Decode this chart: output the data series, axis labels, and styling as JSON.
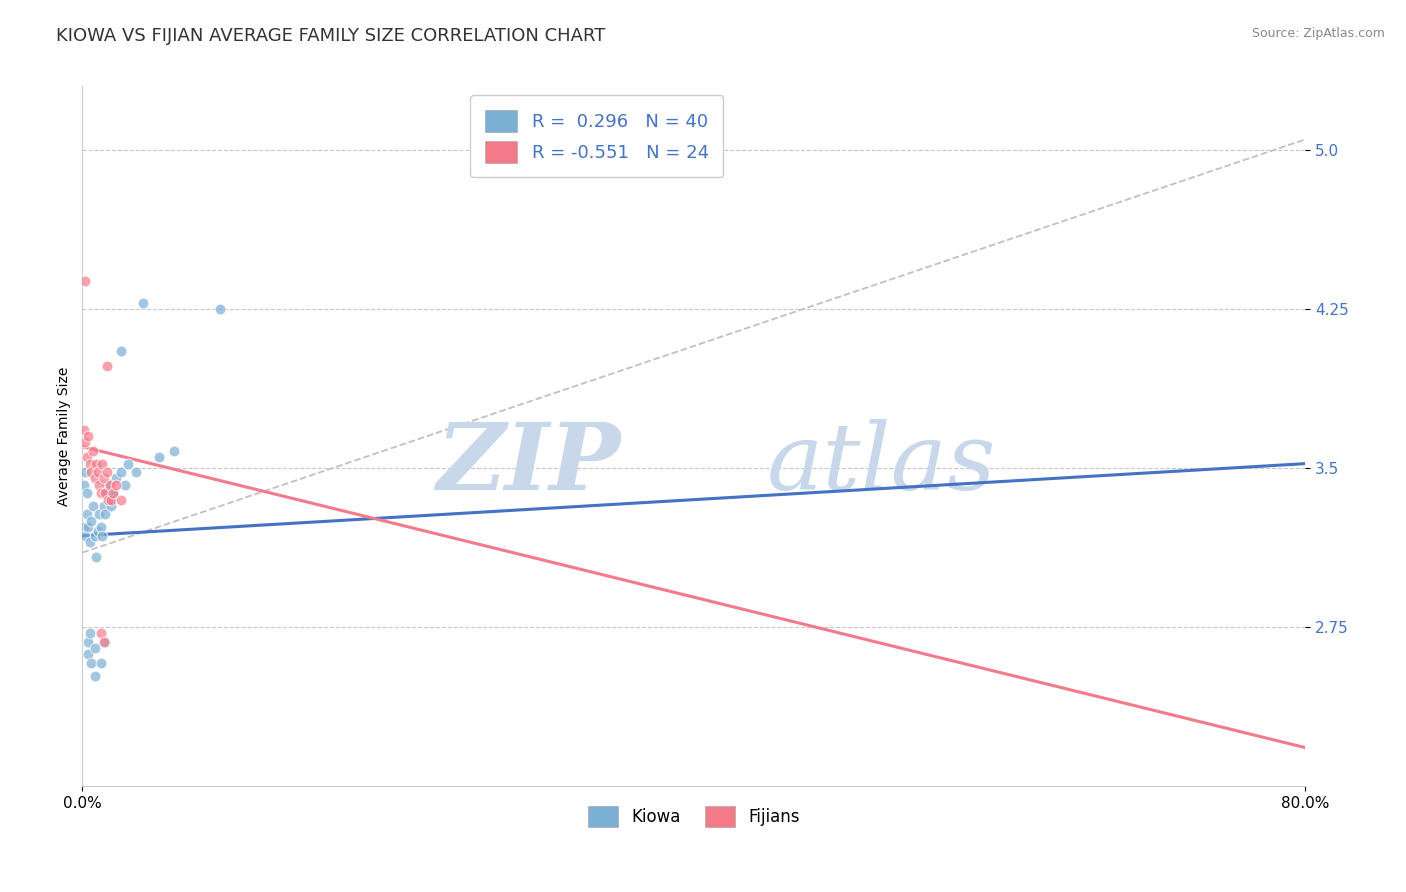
{
  "title": "KIOWA VS FIJIAN AVERAGE FAMILY SIZE CORRELATION CHART",
  "source": "Source: ZipAtlas.com",
  "ylabel": "Average Family Size",
  "xlim": [
    0.0,
    0.8
  ],
  "ylim": [
    2.0,
    5.3
  ],
  "yticks": [
    2.75,
    3.5,
    4.25,
    5.0
  ],
  "xticks": [
    0.0,
    0.8
  ],
  "xtick_labels": [
    "0.0%",
    "80.0%"
  ],
  "legend_labels": [
    "Kiowa",
    "Fijians"
  ],
  "kiowa_color": "#7bafd4",
  "fijian_color": "#f47a8a",
  "trendline_kiowa_color": "#4472c4",
  "trendline_fijian_color": "#f47a8a",
  "trendline_ref_color": "#c0c0c0",
  "watermark_zip": "ZIP",
  "watermark_atlas": "atlas",
  "watermark_color": "#c8d8ea",
  "title_fontsize": 13,
  "axis_label_fontsize": 10,
  "tick_fontsize": 11,
  "kiowa_trendline": [
    [
      0.0,
      3.18
    ],
    [
      0.8,
      3.52
    ]
  ],
  "fijian_trendline": [
    [
      0.0,
      3.6
    ],
    [
      0.8,
      2.18
    ]
  ],
  "ref_dashed_line": [
    [
      0.0,
      3.1
    ],
    [
      0.8,
      5.05
    ]
  ],
  "kiowa_points": [
    [
      0.001,
      3.22
    ],
    [
      0.002,
      3.18
    ],
    [
      0.003,
      3.28
    ],
    [
      0.004,
      3.22
    ],
    [
      0.005,
      3.15
    ],
    [
      0.006,
      3.25
    ],
    [
      0.007,
      3.32
    ],
    [
      0.008,
      3.18
    ],
    [
      0.009,
      3.08
    ],
    [
      0.01,
      3.2
    ],
    [
      0.011,
      3.28
    ],
    [
      0.012,
      3.22
    ],
    [
      0.013,
      3.18
    ],
    [
      0.014,
      3.32
    ],
    [
      0.015,
      3.28
    ],
    [
      0.016,
      3.38
    ],
    [
      0.017,
      3.42
    ],
    [
      0.018,
      3.35
    ],
    [
      0.019,
      3.32
    ],
    [
      0.02,
      3.38
    ],
    [
      0.022,
      3.45
    ],
    [
      0.025,
      3.48
    ],
    [
      0.028,
      3.42
    ],
    [
      0.001,
      3.42
    ],
    [
      0.002,
      3.48
    ],
    [
      0.003,
      3.38
    ],
    [
      0.03,
      3.52
    ],
    [
      0.035,
      3.48
    ],
    [
      0.05,
      3.55
    ],
    [
      0.06,
      3.58
    ],
    [
      0.04,
      4.28
    ],
    [
      0.09,
      4.25
    ],
    [
      0.025,
      4.05
    ],
    [
      0.004,
      2.62
    ],
    [
      0.006,
      2.58
    ],
    [
      0.008,
      2.52
    ],
    [
      0.012,
      2.58
    ],
    [
      0.004,
      2.68
    ],
    [
      0.008,
      2.65
    ],
    [
      0.005,
      2.72
    ],
    [
      0.015,
      2.68
    ]
  ],
  "fijian_points": [
    [
      0.001,
      3.68
    ],
    [
      0.002,
      3.62
    ],
    [
      0.003,
      3.55
    ],
    [
      0.004,
      3.65
    ],
    [
      0.005,
      3.52
    ],
    [
      0.006,
      3.48
    ],
    [
      0.007,
      3.58
    ],
    [
      0.008,
      3.45
    ],
    [
      0.009,
      3.52
    ],
    [
      0.01,
      3.48
    ],
    [
      0.011,
      3.42
    ],
    [
      0.012,
      3.38
    ],
    [
      0.013,
      3.52
    ],
    [
      0.014,
      3.45
    ],
    [
      0.015,
      3.38
    ],
    [
      0.016,
      3.48
    ],
    [
      0.017,
      3.35
    ],
    [
      0.018,
      3.42
    ],
    [
      0.019,
      3.35
    ],
    [
      0.02,
      3.38
    ],
    [
      0.022,
      3.42
    ],
    [
      0.025,
      3.35
    ],
    [
      0.002,
      4.38
    ],
    [
      0.016,
      3.98
    ],
    [
      0.012,
      2.72
    ],
    [
      0.014,
      2.68
    ]
  ]
}
